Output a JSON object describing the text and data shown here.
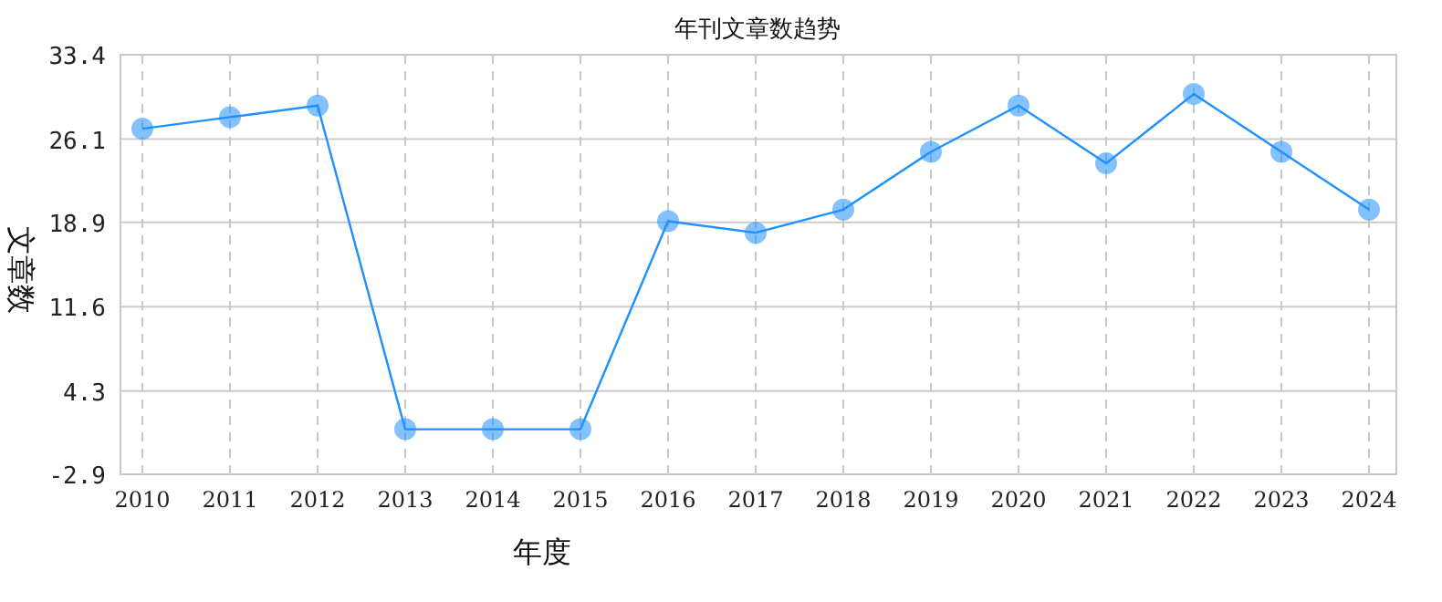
{
  "chart_data": {
    "type": "line",
    "title": "年刊文章数趋势",
    "xlabel": "年度",
    "ylabel": "文章数",
    "categories": [
      "2010",
      "2011",
      "2012",
      "2013",
      "2014",
      "2015",
      "2016",
      "2017",
      "2018",
      "2019",
      "2020",
      "2021",
      "2022",
      "2023",
      "2024"
    ],
    "series": [
      {
        "color": "#1e90ff",
        "values": [
          27,
          28,
          29,
          1,
          1,
          1,
          19,
          18,
          20,
          25,
          29,
          24,
          30,
          25,
          20
        ]
      }
    ],
    "ylim": [
      -2.9,
      33.4
    ],
    "yticks": [
      -2.9,
      4.3,
      11.6,
      18.9,
      26.1,
      33.4
    ],
    "grid": true,
    "marker": "circle",
    "line_style": "solid"
  }
}
